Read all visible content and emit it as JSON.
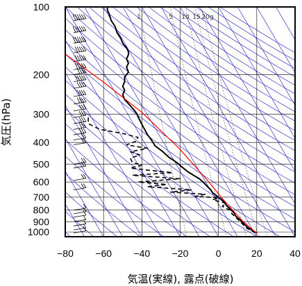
{
  "chart_data": {
    "type": "line",
    "title": "",
    "xlabel": "気温(実線), 露点(破線)",
    "ylabel": "気圧(hPa)",
    "xlim": [
      -80,
      40
    ],
    "ylim": [
      1050,
      100
    ],
    "y_scale": "log",
    "x_ticks": [
      -80,
      -60,
      -40,
      -20,
      0,
      20,
      40
    ],
    "x_tick_labels": [
      "−80",
      "−60",
      "−40",
      "−20",
      "0",
      "20",
      "40"
    ],
    "y_ticks": [
      100,
      200,
      300,
      400,
      500,
      600,
      700,
      800,
      900,
      1000
    ],
    "y_tick_labels": [
      "100",
      "200",
      "300",
      "400",
      "500",
      "600",
      "700",
      "800",
      "900",
      "1000"
    ],
    "mixing_ratio_labels": [
      "1",
      "5",
      "10",
      "15",
      "20g"
    ],
    "mixing_ratio_values": [
      1,
      5,
      10,
      15,
      20
    ],
    "colors": {
      "temperature": "#000000",
      "dewpoint": "#000000",
      "parcel": "#ff0000",
      "isotherm_lines": "#3333cc",
      "adiabat_lines": "#3333cc",
      "mixing_lines": "#555555",
      "grid": "#000000",
      "wind_barbs": "#000000"
    },
    "series": [
      {
        "key": "temperature",
        "style": "solid",
        "points": [
          [
            -58,
            100
          ],
          [
            -58,
            103
          ],
          [
            -57,
            108
          ],
          [
            -56,
            115
          ],
          [
            -54,
            122
          ],
          [
            -53,
            130
          ],
          [
            -51,
            138
          ],
          [
            -50,
            145
          ],
          [
            -48,
            152
          ],
          [
            -47,
            158
          ],
          [
            -47,
            163
          ],
          [
            -48,
            170
          ],
          [
            -47,
            178
          ],
          [
            -48,
            185
          ],
          [
            -47,
            195
          ],
          [
            -49,
            205
          ],
          [
            -49,
            215
          ],
          [
            -50,
            225
          ],
          [
            -49,
            235
          ],
          [
            -50,
            245
          ],
          [
            -49,
            258
          ],
          [
            -46,
            275
          ],
          [
            -43,
            295
          ],
          [
            -41,
            320
          ],
          [
            -39,
            345
          ],
          [
            -37,
            370
          ],
          [
            -35,
            390
          ],
          [
            -33,
            415
          ],
          [
            -29,
            440
          ],
          [
            -26,
            465
          ],
          [
            -22,
            490
          ],
          [
            -19,
            515
          ],
          [
            -16,
            540
          ],
          [
            -13,
            560
          ],
          [
            -10,
            580
          ],
          [
            -8,
            600
          ],
          [
            -6,
            625
          ],
          [
            -4,
            650
          ],
          [
            -3,
            670
          ],
          [
            -1,
            690
          ],
          [
            1,
            710
          ],
          [
            3,
            735
          ],
          [
            4,
            760
          ],
          [
            6,
            790
          ],
          [
            8,
            820
          ],
          [
            9,
            850
          ],
          [
            11,
            880
          ],
          [
            13,
            915
          ],
          [
            15,
            950
          ],
          [
            18,
            990
          ],
          [
            20,
            1010
          ]
        ]
      },
      {
        "key": "dewpoint",
        "style": "dashed",
        "points": [
          [
            -68,
            310
          ],
          [
            -68,
            330
          ],
          [
            -62,
            350
          ],
          [
            -50,
            365
          ],
          [
            -42,
            380
          ],
          [
            -43,
            395
          ],
          [
            -48,
            410
          ],
          [
            -37,
            425
          ],
          [
            -46,
            440
          ],
          [
            -41,
            455
          ],
          [
            -46,
            470
          ],
          [
            -45,
            490
          ],
          [
            -40,
            505
          ],
          [
            -46,
            520
          ],
          [
            -38,
            530
          ],
          [
            -24,
            545
          ],
          [
            -45,
            560
          ],
          [
            -20,
            580
          ],
          [
            -42,
            600
          ],
          [
            -27,
            615
          ],
          [
            -37,
            630
          ],
          [
            -14,
            650
          ],
          [
            -25,
            665
          ],
          [
            -7,
            680
          ],
          [
            -12,
            695
          ],
          [
            0,
            705
          ],
          [
            -3,
            720
          ],
          [
            4,
            745
          ],
          [
            2,
            770
          ],
          [
            6,
            800
          ],
          [
            7,
            830
          ],
          [
            9,
            860
          ],
          [
            11,
            895
          ],
          [
            13,
            930
          ],
          [
            15,
            965
          ],
          [
            18,
            995
          ],
          [
            19,
            1010
          ]
        ]
      },
      {
        "key": "parcel",
        "style": "solid",
        "points": [
          [
            -80,
            162
          ],
          [
            -60,
            216
          ],
          [
            -40,
            294
          ],
          [
            -20,
            430
          ],
          [
            -5,
            600
          ],
          [
            2,
            710
          ],
          [
            8,
            810
          ],
          [
            13,
            900
          ],
          [
            18,
            980
          ],
          [
            20,
            1010
          ]
        ]
      }
    ],
    "wind_barbs": [
      {
        "p": 115,
        "speed_kt": 55
      },
      {
        "p": 130,
        "speed_kt": 60
      },
      {
        "p": 145,
        "speed_kt": 55
      },
      {
        "p": 160,
        "speed_kt": 50
      },
      {
        "p": 175,
        "speed_kt": 45
      },
      {
        "p": 190,
        "speed_kt": 45
      },
      {
        "p": 200,
        "speed_kt": 40
      },
      {
        "p": 215,
        "speed_kt": 45
      },
      {
        "p": 230,
        "speed_kt": 40
      },
      {
        "p": 250,
        "speed_kt": 35
      },
      {
        "p": 270,
        "speed_kt": 35
      },
      {
        "p": 290,
        "speed_kt": 30
      },
      {
        "p": 310,
        "speed_kt": 30
      },
      {
        "p": 330,
        "speed_kt": 25
      },
      {
        "p": 350,
        "speed_kt": 25
      },
      {
        "p": 370,
        "speed_kt": 25
      },
      {
        "p": 390,
        "speed_kt": 20
      },
      {
        "p": 410,
        "speed_kt": 20
      },
      {
        "p": 500,
        "speed_kt": 20
      },
      {
        "p": 520,
        "speed_kt": 15
      },
      {
        "p": 590,
        "speed_kt": 15
      },
      {
        "p": 650,
        "speed_kt": 15
      },
      {
        "p": 800,
        "speed_kt": 10
      },
      {
        "p": 830,
        "speed_kt": 10
      },
      {
        "p": 860,
        "speed_kt": 10
      },
      {
        "p": 900,
        "speed_kt": 10
      },
      {
        "p": 940,
        "speed_kt": 10
      },
      {
        "p": 980,
        "speed_kt": 10
      },
      {
        "p": 1010,
        "speed_kt": 5
      }
    ]
  }
}
